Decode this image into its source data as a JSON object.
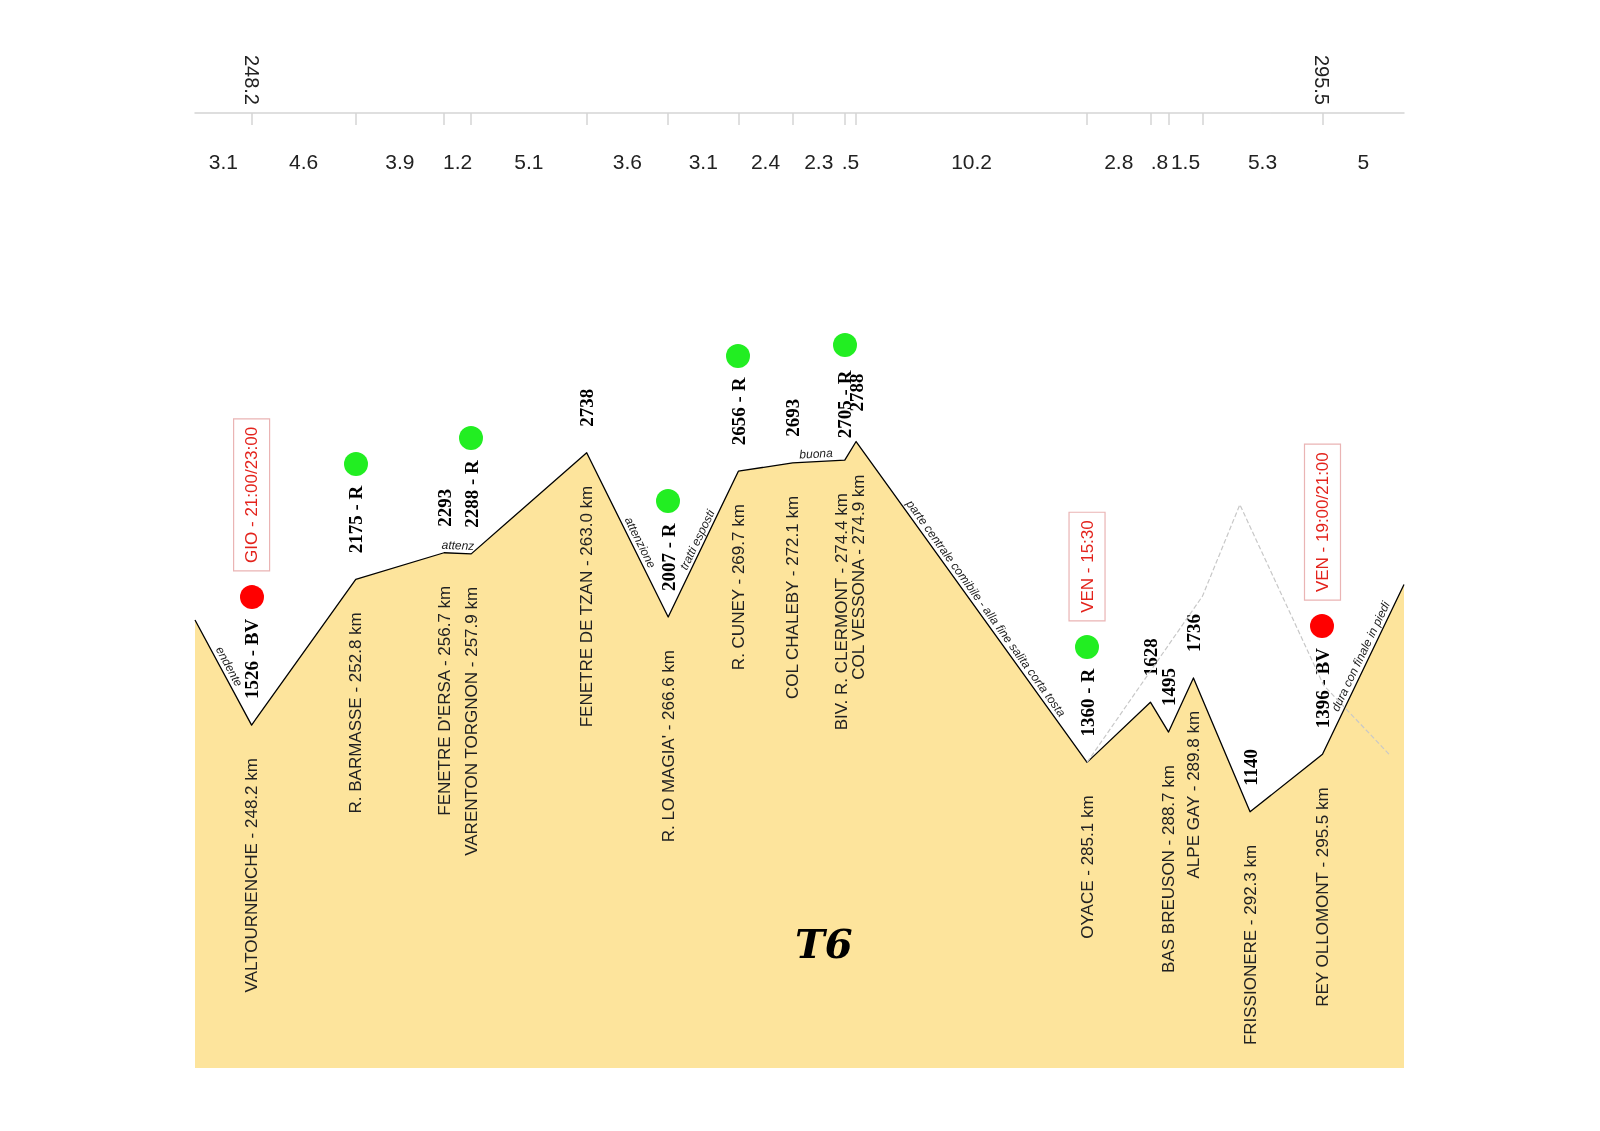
{
  "chart_data": {
    "type": "area",
    "title": "T6",
    "xlim": [
      245.7,
      299.1
    ],
    "ylim": [
      0,
      4250
    ],
    "xticks": [
      248.2,
      {
        "value": 252.8,
        "label": null
      },
      {
        "value": 256.7,
        "label": null
      },
      {
        "value": 257.9,
        "label": null
      },
      {
        "value": 263.0,
        "label": null
      },
      {
        "value": 266.6,
        "label": null
      },
      {
        "value": 269.7,
        "label": null
      },
      {
        "value": 272.1,
        "label": null
      },
      {
        "value": 274.4,
        "label": null
      },
      {
        "value": 274.9,
        "label": null
      },
      {
        "value": 285.1,
        "label": null
      },
      {
        "value": 287.9,
        "label": null
      },
      {
        "value": 288.7,
        "label": null
      },
      {
        "value": 290.2,
        "label": null
      },
      295.5
    ],
    "tick_labels": "x",
    "series": [
      {
        "color": "#fde49c",
        "x": [
          245.7,
          248.2,
          252.8,
          256.7,
          257.9,
          263.0,
          266.6,
          269.7,
          272.1,
          274.4,
          274.9,
          285.1,
          287.9,
          288.7,
          289.8,
          292.3,
          295.5,
          299.1
        ],
        "values": [
          1994,
          1526,
          2175,
          2293,
          2288,
          2738,
          2007,
          2656,
          2693,
          2705,
          2788,
          1360,
          1628,
          1495,
          1736,
          1140,
          1396,
          2152
        ],
        "value_labels": [
          null,
          "1526 - BV",
          "2175 - R",
          "2293",
          "2288 - R",
          "2738",
          "2007 - R",
          "2656 - R",
          "2693",
          "2705 - R",
          "2788",
          "1360 - R",
          "1628",
          "1495",
          "1736",
          "1140",
          "1396 - BV",
          null
        ],
        "colors": [
          null,
          "#ff0000",
          "#22ee22",
          null,
          "#22ee22",
          null,
          "#22ee22",
          "#22ee22",
          null,
          "#22ee22",
          null,
          "#22ee22",
          null,
          null,
          null,
          null,
          "#ff0000",
          null
        ]
      },
      {
        "type": "line",
        "color": "#c8c8c8",
        "line_style": "dashed",
        "x": [
          285.1,
          290.2,
          291.85,
          295.55,
          298.5
        ],
        "values": [
          1360,
          2100,
          2507,
          1703,
          1390
        ]
      }
    ],
    "annotations": [
      "3.1",
      "4.6",
      "3.9",
      "1.2",
      "5.1",
      "3.6",
      "3.1",
      "2.4",
      "2.3",
      ".5",
      "10.2",
      "2.8",
      ".8",
      "1.5",
      "5.3",
      "5",
      "GIO - 21:00/23:00",
      "VEN - 15:30",
      "VEN - 19:00/21:00",
      {
        "text": "VALTOURNENCHE - 248.2 km",
        "x": 248.2,
        "y": 1526
      },
      {
        "text": "R. BARMASSE - 252.8 km",
        "x": 252.8,
        "y": 2175
      },
      {
        "text": "FENETRE D'ERSA - 256.7 km",
        "x": 256.7,
        "y": 2293
      },
      {
        "text": "VARENTON TORGNON - 257.9 km",
        "x": 257.9,
        "y": 2288
      },
      {
        "text": "FENETRE DE TZAN - 263.0 km",
        "x": 263.0,
        "y": 2738
      },
      {
        "text": "R. LO MAGIA' - 266.6 km",
        "x": 266.6,
        "y": 2007
      },
      {
        "text": "R. CUNEY - 269.7 km",
        "x": 269.7,
        "y": 2656
      },
      {
        "text": "COL CHALEBY - 272.1 km",
        "x": 272.1,
        "y": 2693
      },
      {
        "text": "BIV. R. CLERMONT - 274.4 km",
        "x": 274.4,
        "y": 2705
      },
      {
        "text": "COL VESSONA - 274.9 km",
        "x": 274.9,
        "y": 2788
      },
      {
        "text": "OYACE - 285.1 km",
        "x": 285.1,
        "y": 1360
      },
      {
        "text": "BAS BREUSON - 288.7 km",
        "x": 288.7,
        "y": 1495
      },
      {
        "text": "ALPE GAY - 289.8 km",
        "x": 289.8,
        "y": 1736
      },
      {
        "text": "FRISSIONERE - 292.3 km",
        "x": 292.3,
        "y": 1140
      },
      {
        "text": "REY OLLOMONT - 295.5 km",
        "x": 295.5,
        "y": 1396
      },
      {
        "text": "endente",
        "x": 246.9,
        "y": 1770
      },
      {
        "text": "attenz",
        "x": 257.3,
        "y": 2290
      },
      {
        "text": "attenzione",
        "x": 265.05,
        "y": 2323
      },
      {
        "text": "tratti esposti",
        "x": 268.2,
        "y": 2335
      },
      {
        "text": "buona",
        "x": 273.15,
        "y": 2698
      },
      {
        "text": "parte centrale comibile - alla fine salita corta tosta",
        "x": 280.35,
        "y": 2025
      },
      {
        "text": "dura con finale in piedi",
        "x": 297.5,
        "y": 1816
      }
    ]
  }
}
